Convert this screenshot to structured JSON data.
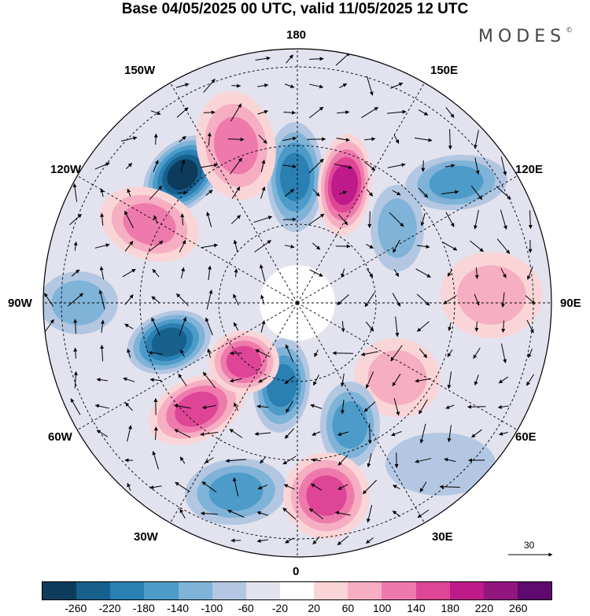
{
  "title": "Base 04/05/2025 00 UTC, valid 11/05/2025 12 UTC",
  "brand": "MODES",
  "brand_mark": "©",
  "longitude_labels": {
    "n": "180",
    "s": "0",
    "w": "90W",
    "e": "90E",
    "nw1": "150W",
    "nw2": "120W",
    "ne1": "150E",
    "ne2": "120E",
    "sw1": "60W",
    "sw2": "30W",
    "se1": "60E",
    "se2": "30E"
  },
  "vector_scale": {
    "value": "30",
    "arrow_icon": "right-arrow-icon"
  },
  "colorbar": {
    "colors": [
      "#0d3b5c",
      "#17608c",
      "#2a7fb3",
      "#4d9bc9",
      "#7fb3d8",
      "#b3c7e2",
      "#e2e3ef",
      "#ffffff",
      "#f9d5d8",
      "#f6aec2",
      "#ee7aac",
      "#df4596",
      "#be1a8a",
      "#92167e",
      "#5e0a6e"
    ],
    "ticks": [
      "-260",
      "-220",
      "-180",
      "-140",
      "-100",
      "-60",
      "-20",
      "20",
      "60",
      "100",
      "140",
      "180",
      "220",
      "260"
    ]
  },
  "anomaly_centers": [
    {
      "sign": "neg",
      "level": 260,
      "lon": "150W-120W"
    },
    {
      "sign": "neg",
      "level": 180,
      "lon": "180"
    },
    {
      "sign": "pos",
      "level": 220,
      "lon": "150E"
    },
    {
      "sign": "neg",
      "level": 140,
      "lon": "120E"
    },
    {
      "sign": "neg",
      "level": 100,
      "lon": "120E"
    },
    {
      "sign": "pos",
      "level": 140,
      "lon": "120W"
    },
    {
      "sign": "pos",
      "level": 140,
      "lon": "150W"
    },
    {
      "sign": "neg",
      "level": 100,
      "lon": "90W"
    },
    {
      "sign": "pos",
      "level": 100,
      "lon": "90E"
    },
    {
      "sign": "neg",
      "level": 220,
      "lon": "60W"
    },
    {
      "sign": "pos",
      "level": 180,
      "lon": "30W"
    },
    {
      "sign": "neg",
      "level": 180,
      "lon": "0"
    },
    {
      "sign": "pos",
      "level": 100,
      "lon": "60E"
    },
    {
      "sign": "pos",
      "level": 180,
      "lon": "60W-30W"
    },
    {
      "sign": "neg",
      "level": 140,
      "lon": "30E"
    },
    {
      "sign": "neg",
      "level": 140,
      "lon": "30W"
    },
    {
      "sign": "pos",
      "level": 180,
      "lon": "0-30E"
    },
    {
      "sign": "neg",
      "level": 60,
      "lon": "30E-60E"
    }
  ]
}
